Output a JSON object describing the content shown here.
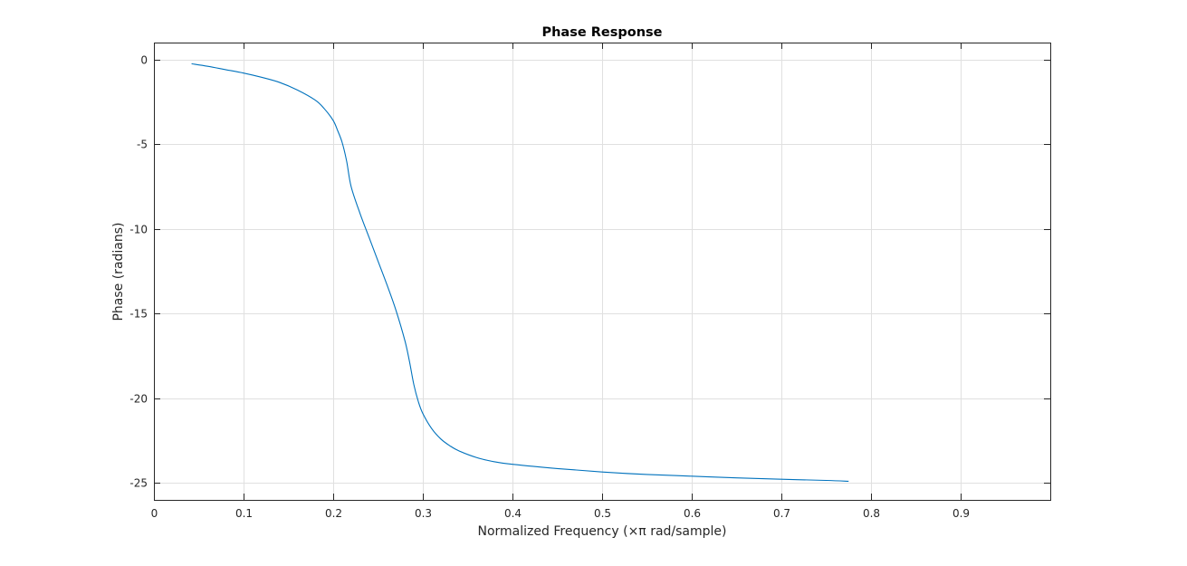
{
  "chart_data": {
    "type": "line",
    "title": "Phase Response",
    "xlabel": "Normalized Frequency (×π rad/sample)",
    "ylabel": "Phase (radians)",
    "xlim": [
      0,
      1
    ],
    "ylim": [
      -26,
      1
    ],
    "xticks": [
      0,
      0.1,
      0.2,
      0.3,
      0.4,
      0.5,
      0.6,
      0.7,
      0.8,
      0.9
    ],
    "xtick_labels": [
      "0",
      "0.1",
      "0.2",
      "0.3",
      "0.4",
      "0.5",
      "0.6",
      "0.7",
      "0.8",
      "0.9"
    ],
    "yticks": [
      0,
      -5,
      -10,
      -15,
      -20,
      -25
    ],
    "ytick_labels": [
      "0",
      "-5",
      "-10",
      "-15",
      "-20",
      "-25"
    ],
    "grid": true,
    "line_color": "#0072BD",
    "series": [
      {
        "x": [
          0.042,
          0.06,
          0.08,
          0.1,
          0.12,
          0.14,
          0.16,
          0.18,
          0.19,
          0.2,
          0.205,
          0.21,
          0.215,
          0.22,
          0.23,
          0.24,
          0.25,
          0.26,
          0.27,
          0.28,
          0.285,
          0.29,
          0.295,
          0.3,
          0.31,
          0.32,
          0.33,
          0.34,
          0.36,
          0.38,
          0.4,
          0.45,
          0.5,
          0.55,
          0.6,
          0.65,
          0.7,
          0.75,
          0.775
        ],
        "y": [
          -0.25,
          -0.4,
          -0.6,
          -0.8,
          -1.05,
          -1.35,
          -1.8,
          -2.4,
          -2.9,
          -3.6,
          -4.2,
          -4.9,
          -6.0,
          -7.5,
          -9.1,
          -10.5,
          -11.9,
          -13.3,
          -14.8,
          -16.6,
          -17.8,
          -19.2,
          -20.2,
          -20.9,
          -21.8,
          -22.4,
          -22.8,
          -23.1,
          -23.5,
          -23.75,
          -23.9,
          -24.15,
          -24.35,
          -24.5,
          -24.6,
          -24.7,
          -24.78,
          -24.85,
          -24.9
        ]
      }
    ]
  }
}
